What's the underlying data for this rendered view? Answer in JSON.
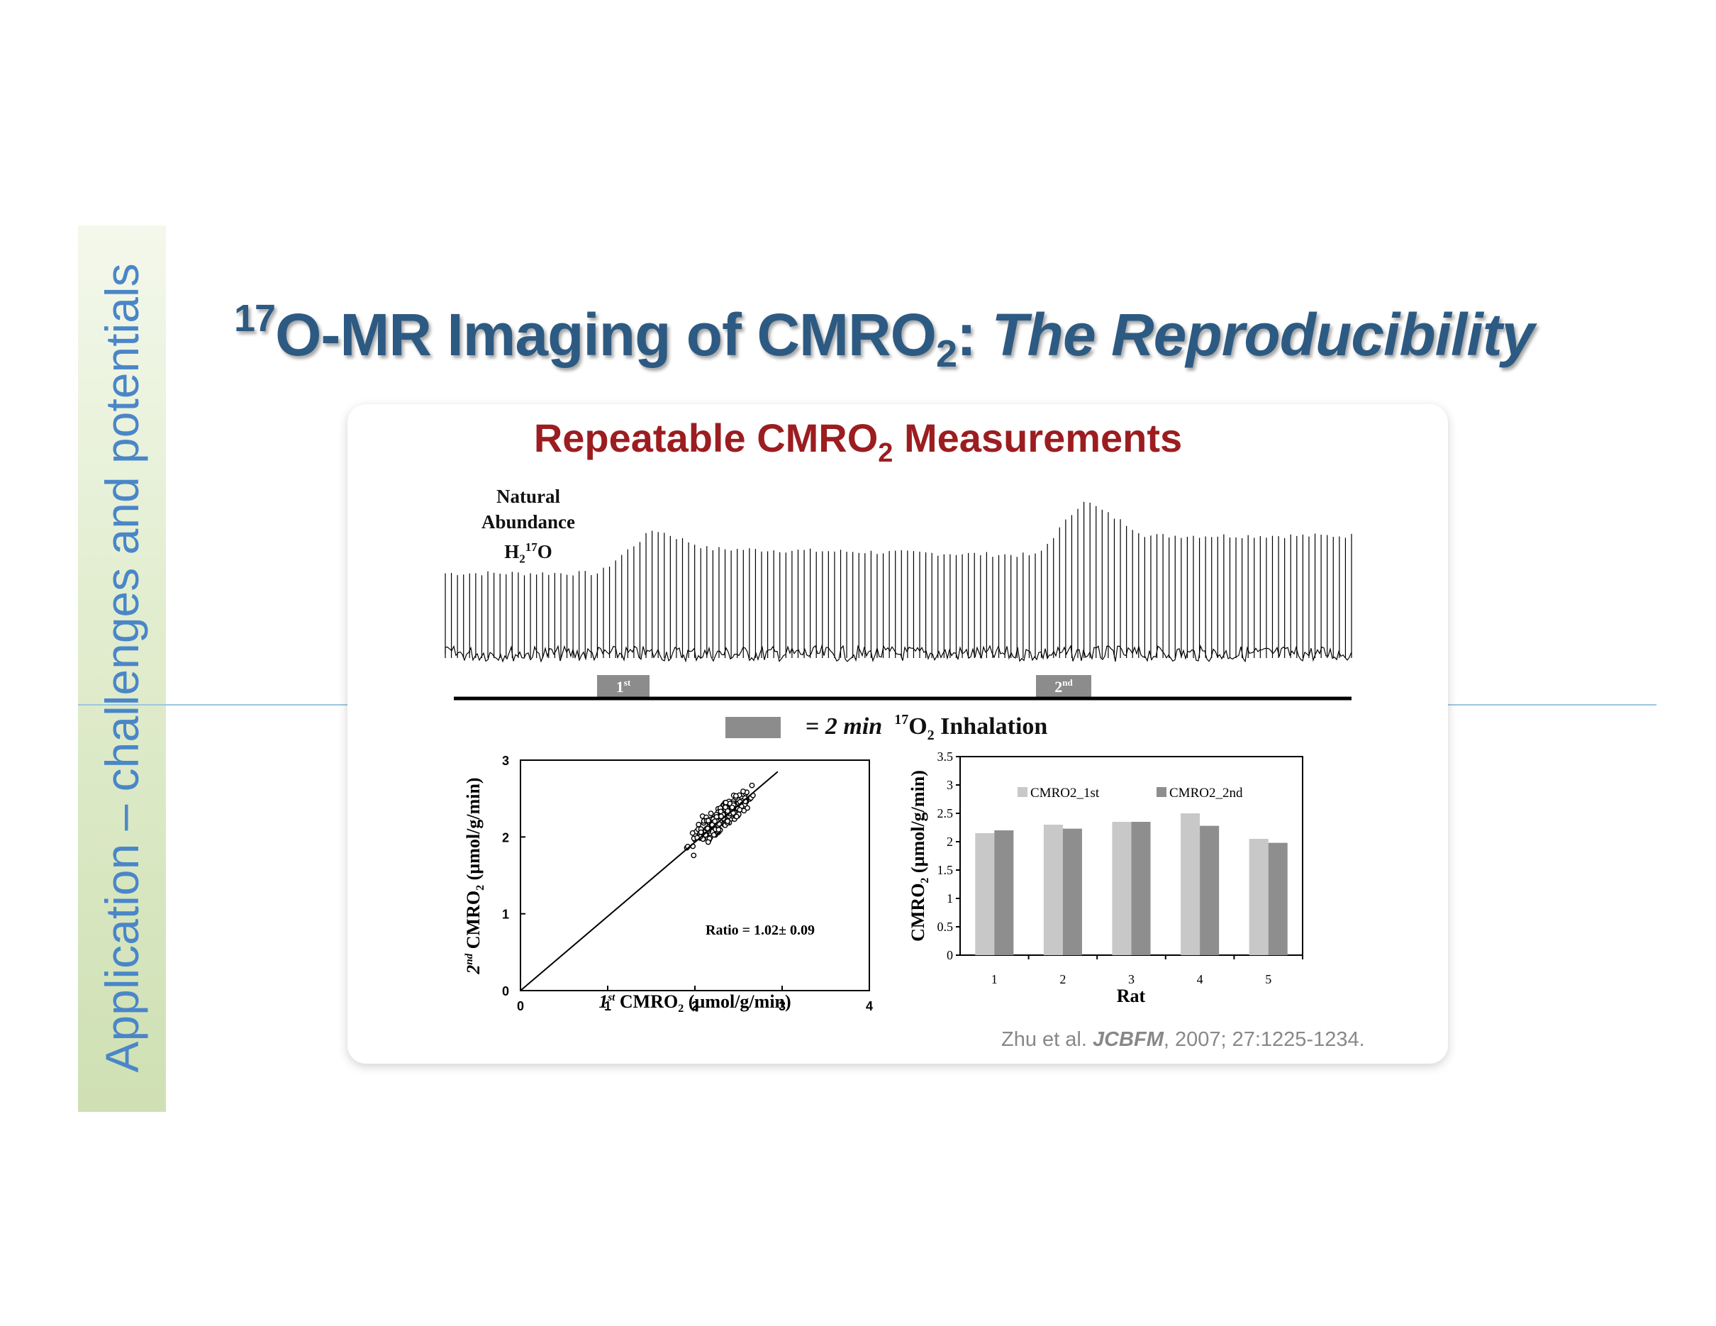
{
  "sidebar": {
    "text": "Application – challenges and potentials"
  },
  "slide": {
    "title_sup": "17",
    "title_main": "O-MR Imaging of CMRO",
    "title_sub": "2",
    "title_colon": ": ",
    "title_italic": "The Reproducibility"
  },
  "card": {
    "title_main": "Repeatable CMRO",
    "title_sub": "2",
    "title_end": " Measurements"
  },
  "spectrum": {
    "label_line1": "Natural",
    "label_line2": "Abundance",
    "label_h": "H",
    "label_h_sub": "2",
    "label_sup": "17",
    "label_o": "O",
    "marker1_main": "1",
    "marker1_sup": "st",
    "marker2_main": "2",
    "marker2_sup": "nd",
    "peak_count": 150,
    "baseline_level": 0.52,
    "inhalation1_start": 0.17,
    "inhalation2_start": 0.654,
    "peak1_level": 0.79,
    "plateau1_level": 0.67,
    "peak2_level": 0.97,
    "plateau2_level": 0.75
  },
  "legend": {
    "prefix": "= ",
    "duration": "2 min",
    "sup": "17",
    "o": "O",
    "sub": "2",
    "suffix": " Inhalation"
  },
  "chart_data": [
    {
      "type": "scatter",
      "xlabel": "1st CMRO2 (µmol/g/min)",
      "xlabel_parts": {
        "pre": "1",
        "sup": "st",
        "main": " CMRO",
        "sub": "2",
        "post": " (µmol/g/min)"
      },
      "ylabel": "2nd CMRO2 (µmol/g/min)",
      "ylabel_parts": {
        "pre": "2",
        "sup": "nd",
        "main": " CMRO",
        "sub": "2",
        "post": " (µmol/g/min)"
      },
      "xlim": [
        0,
        4
      ],
      "ylim": [
        0,
        3
      ],
      "xticks": [
        "0",
        "1",
        "2",
        "3",
        "4"
      ],
      "yticks": [
        "0",
        "1",
        "2",
        "3"
      ],
      "annotation": "Ratio = 1.02± 0.09",
      "fit_line": {
        "x": [
          0,
          2.95
        ],
        "y": [
          0,
          2.85
        ]
      },
      "cluster": {
        "x_center": 2.3,
        "y_center": 2.25,
        "x_range": [
          1.35,
          2.95
        ],
        "count": 300
      }
    },
    {
      "type": "bar",
      "categories": [
        "1",
        "2",
        "3",
        "4",
        "5"
      ],
      "series": [
        {
          "name": "CMRO2_1st",
          "color": "#c8c8c8",
          "values": [
            2.15,
            2.3,
            2.35,
            2.5,
            2.05
          ]
        },
        {
          "name": "CMRO2_2nd",
          "color": "#8e8e8e",
          "values": [
            2.2,
            2.23,
            2.35,
            2.28,
            1.98
          ]
        }
      ],
      "xlabel": "Rat",
      "ylabel": "CMRO2 (µmol/g/min)",
      "ylabel_parts": {
        "main": "CMRO",
        "sub": "2",
        "post": " (µmol/g/min)"
      },
      "ylim": [
        0,
        3.5
      ],
      "yticks": [
        "0",
        "0.5",
        "1",
        "1.5",
        "2",
        "2.5",
        "3",
        "3.5"
      ],
      "legend_position": "top"
    }
  ],
  "citation": {
    "authors": "Zhu et al. ",
    "journal": "JCBFM",
    "rest": ", 2007; 27:1225-1234."
  }
}
